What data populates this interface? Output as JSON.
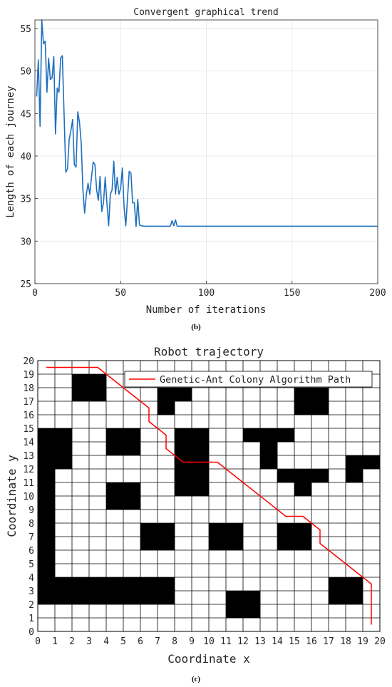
{
  "figure_b": {
    "panel_label": "(b)",
    "chart_data": {
      "type": "line",
      "title": "Convergent graphical trend",
      "xlabel": "Number of iterations",
      "ylabel": "Length of each journey",
      "xlim": [
        0,
        200
      ],
      "ylim": [
        25,
        56
      ],
      "xticks": [
        "0",
        "50",
        "100",
        "150",
        "200"
      ],
      "yticks": [
        "25",
        "30",
        "35",
        "40",
        "45",
        "50",
        "55"
      ],
      "grid": true,
      "line_color": "#1f6fbf",
      "series": [
        {
          "x": [
            1,
            2,
            3,
            4,
            5,
            6,
            7,
            8,
            9,
            10,
            11,
            12,
            13,
            14,
            15,
            16,
            17,
            18,
            19,
            20,
            21,
            22,
            23,
            24,
            25,
            26,
            27,
            28,
            29,
            30,
            31,
            32,
            33,
            34,
            35,
            36,
            37,
            38,
            39,
            40,
            41,
            42,
            43,
            44,
            45,
            46,
            47,
            48,
            49,
            50,
            51,
            52,
            53,
            54,
            55,
            56,
            57,
            58,
            59,
            60,
            61,
            62,
            64,
            70,
            79,
            80,
            81,
            82,
            83,
            84,
            90,
            200
          ],
          "y": [
            47,
            51.3,
            43.5,
            56,
            53.2,
            53.5,
            47.5,
            51.5,
            49,
            49.2,
            51.7,
            42.6,
            48,
            47.5,
            51.5,
            51.8,
            45,
            38.1,
            38.5,
            42,
            43,
            44.3,
            39,
            38.7,
            45.2,
            44,
            41.5,
            36,
            33.3,
            35.5,
            36.8,
            35.5,
            37.5,
            39.3,
            39,
            36,
            34.8,
            37.6,
            33.5,
            34.5,
            37.5,
            34.5,
            31.8,
            35.5,
            36,
            39.4,
            35.5,
            37.5,
            35.5,
            36.2,
            38.6,
            34,
            31.8,
            35,
            38.2,
            38,
            34.5,
            34.5,
            31.7,
            34.9,
            31.9,
            31.8,
            31.75,
            31.75,
            31.75,
            32.4,
            31.8,
            32.5,
            31.75,
            31.75,
            31.75,
            31.75
          ]
        }
      ]
    }
  },
  "figure_c": {
    "panel_label": "(c)",
    "chart_data": {
      "type": "grid-map",
      "title": "Robot trajectory",
      "xlabel": "Coordinate x",
      "ylabel": "Coordinate y",
      "xlim": [
        0,
        20
      ],
      "ylim": [
        0,
        20
      ],
      "xticks": [
        "0",
        "1",
        "2",
        "3",
        "4",
        "5",
        "6",
        "7",
        "8",
        "9",
        "10",
        "11",
        "12",
        "13",
        "14",
        "15",
        "16",
        "17",
        "18",
        "19",
        "20"
      ],
      "yticks": [
        "0",
        "1",
        "2",
        "3",
        "4",
        "5",
        "6",
        "7",
        "8",
        "9",
        "10",
        "11",
        "12",
        "13",
        "14",
        "15",
        "16",
        "17",
        "18",
        "19",
        "20"
      ],
      "legend": {
        "label": "Genetic-Ant Colony Algorithm Path",
        "location": "top-right"
      },
      "obstacle_color": "#000000",
      "path_color": "#ff0000",
      "obstacles": [
        [
          2,
          17
        ],
        [
          3,
          17
        ],
        [
          2,
          18
        ],
        [
          3,
          18
        ],
        [
          7,
          16
        ],
        [
          7,
          17
        ],
        [
          8,
          17
        ],
        [
          15,
          16
        ],
        [
          16,
          16
        ],
        [
          15,
          17
        ],
        [
          16,
          17
        ],
        [
          0,
          12
        ],
        [
          1,
          12
        ],
        [
          0,
          13
        ],
        [
          1,
          13
        ],
        [
          0,
          14
        ],
        [
          1,
          14
        ],
        [
          4,
          13
        ],
        [
          5,
          13
        ],
        [
          4,
          14
        ],
        [
          5,
          14
        ],
        [
          8,
          12
        ],
        [
          9,
          12
        ],
        [
          8,
          13
        ],
        [
          9,
          13
        ],
        [
          8,
          14
        ],
        [
          9,
          14
        ],
        [
          12,
          14
        ],
        [
          13,
          14
        ],
        [
          14,
          14
        ],
        [
          13,
          13
        ],
        [
          13,
          12
        ],
        [
          18,
          11
        ],
        [
          18,
          12
        ],
        [
          19,
          12
        ],
        [
          8,
          10
        ],
        [
          9,
          10
        ],
        [
          8,
          11
        ],
        [
          9,
          11
        ],
        [
          14,
          11
        ],
        [
          15,
          11
        ],
        [
          16,
          11
        ],
        [
          15,
          10
        ],
        [
          4,
          9
        ],
        [
          5,
          9
        ],
        [
          4,
          10
        ],
        [
          5,
          10
        ],
        [
          0,
          4
        ],
        [
          0,
          5
        ],
        [
          0,
          6
        ],
        [
          0,
          7
        ],
        [
          0,
          8
        ],
        [
          0,
          9
        ],
        [
          0,
          10
        ],
        [
          0,
          11
        ],
        [
          6,
          6
        ],
        [
          7,
          6
        ],
        [
          6,
          7
        ],
        [
          7,
          7
        ],
        [
          10,
          6
        ],
        [
          11,
          6
        ],
        [
          10,
          7
        ],
        [
          11,
          7
        ],
        [
          14,
          6
        ],
        [
          15,
          6
        ],
        [
          14,
          7
        ],
        [
          15,
          7
        ],
        [
          0,
          2
        ],
        [
          1,
          2
        ],
        [
          2,
          2
        ],
        [
          3,
          2
        ],
        [
          4,
          2
        ],
        [
          5,
          2
        ],
        [
          6,
          2
        ],
        [
          7,
          2
        ],
        [
          0,
          3
        ],
        [
          1,
          3
        ],
        [
          2,
          3
        ],
        [
          3,
          3
        ],
        [
          4,
          3
        ],
        [
          5,
          3
        ],
        [
          6,
          3
        ],
        [
          7,
          3
        ],
        [
          17,
          2
        ],
        [
          18,
          2
        ],
        [
          17,
          3
        ],
        [
          18,
          3
        ],
        [
          11,
          1
        ],
        [
          12,
          1
        ],
        [
          11,
          2
        ],
        [
          12,
          2
        ]
      ],
      "path": [
        [
          0.5,
          19.5
        ],
        [
          3.5,
          19.5
        ],
        [
          6.5,
          16.5
        ],
        [
          6.5,
          15.5
        ],
        [
          7.5,
          14.5
        ],
        [
          7.5,
          13.5
        ],
        [
          8.5,
          12.5
        ],
        [
          10.5,
          12.5
        ],
        [
          14.5,
          8.5
        ],
        [
          15.5,
          8.5
        ],
        [
          16.5,
          7.5
        ],
        [
          16.5,
          6.5
        ],
        [
          19.5,
          3.5
        ],
        [
          19.5,
          0.5
        ]
      ]
    }
  }
}
